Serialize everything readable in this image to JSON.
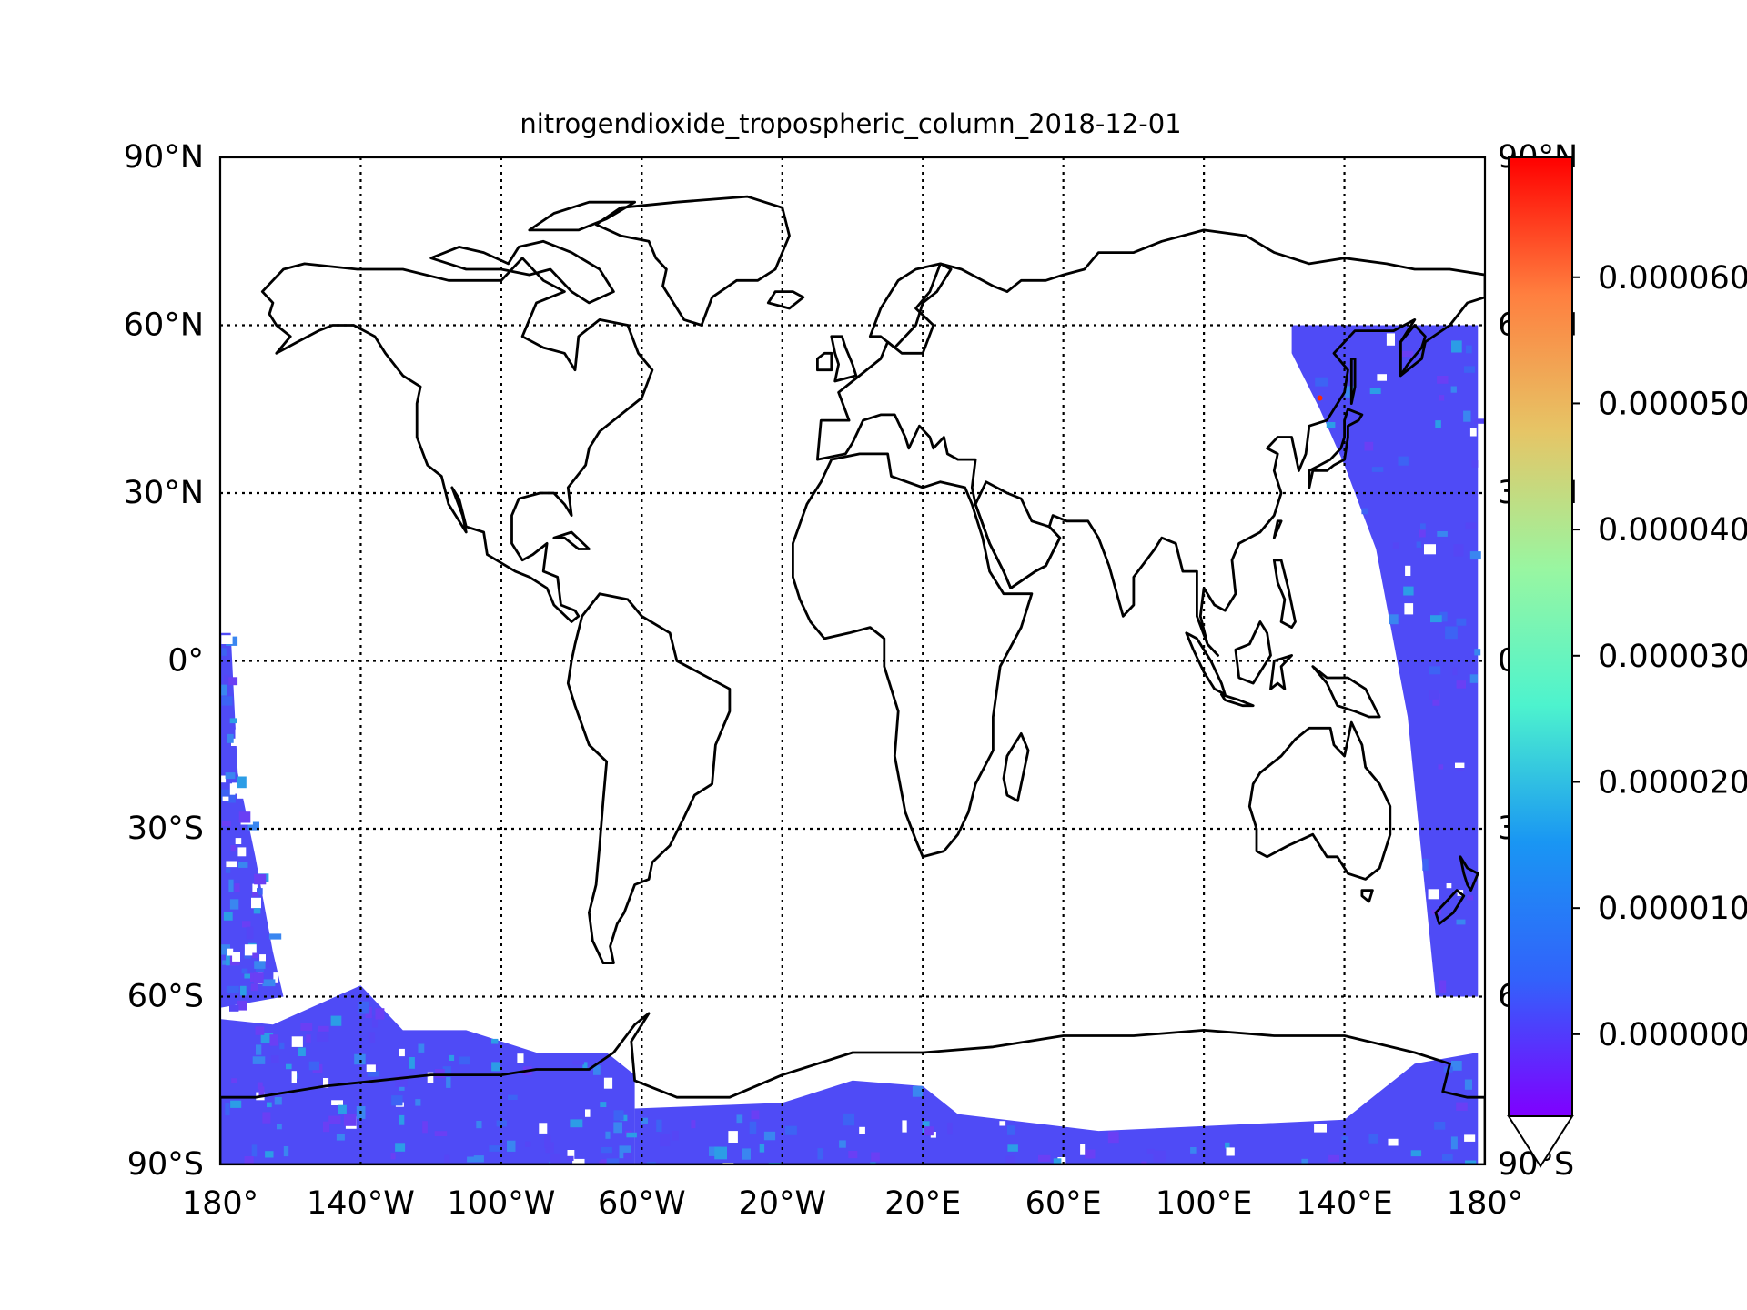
{
  "figure": {
    "title": "nitrogendioxide_tropospheric_column_2018-12-01"
  },
  "map": {
    "projection": "cylindrical",
    "lon_range": [
      -180,
      180
    ],
    "lat_range": [
      -90,
      90
    ],
    "lat_ticks": [
      {
        "lat": 90,
        "label": "90°N"
      },
      {
        "lat": 60,
        "label": "60°N"
      },
      {
        "lat": 30,
        "label": "30°N"
      },
      {
        "lat": 0,
        "label": "0°"
      },
      {
        "lat": -30,
        "label": "30°S"
      },
      {
        "lat": -60,
        "label": "60°S"
      },
      {
        "lat": -90,
        "label": "90°S"
      }
    ],
    "right_lat_labels": [
      {
        "lat": 90,
        "label": "90°N"
      },
      {
        "lat": 60,
        "label": "60°N"
      },
      {
        "lat": 30,
        "label": "30°N"
      },
      {
        "lat": 0,
        "label": "0°"
      },
      {
        "lat": -30,
        "label": "30°S"
      },
      {
        "lat": -60,
        "label": "60°S"
      },
      {
        "lat": -90,
        "label": "90°S"
      }
    ],
    "lon_ticks": [
      {
        "lon": -180,
        "label": "180°"
      },
      {
        "lon": -140,
        "label": "140°W"
      },
      {
        "lon": -100,
        "label": "100°W"
      },
      {
        "lon": -60,
        "label": "60°W"
      },
      {
        "lon": -20,
        "label": "20°W"
      },
      {
        "lon": 20,
        "label": "20°E"
      },
      {
        "lon": 60,
        "label": "60°E"
      },
      {
        "lon": 100,
        "label": "100°E"
      },
      {
        "lon": 140,
        "label": "140°E"
      },
      {
        "lon": 180,
        "label": "180°"
      }
    ],
    "gridlines": true,
    "coastlines": true,
    "data_regions": [
      {
        "name": "western-pacific",
        "polygon": [
          [
            125,
            60
          ],
          [
            178,
            60
          ],
          [
            178,
            -60
          ],
          [
            166,
            -60
          ],
          [
            158,
            -10
          ],
          [
            149,
            20
          ],
          [
            140,
            35
          ],
          [
            133,
            45
          ],
          [
            125,
            55
          ]
        ]
      },
      {
        "name": "eastern-pacific-southwest",
        "polygon": [
          [
            -180,
            5
          ],
          [
            -177,
            5
          ],
          [
            -175,
            -20
          ],
          [
            -170,
            -35
          ],
          [
            -165,
            -52
          ],
          [
            -162,
            -60
          ],
          [
            -180,
            -62
          ]
        ]
      },
      {
        "name": "antarctic-band-west",
        "polygon": [
          [
            -180,
            -64
          ],
          [
            -165,
            -65
          ],
          [
            -140,
            -58
          ],
          [
            -128,
            -66
          ],
          [
            -110,
            -66
          ],
          [
            -90,
            -70
          ],
          [
            -70,
            -70
          ],
          [
            -62,
            -74
          ],
          [
            -62,
            -90
          ],
          [
            -180,
            -90
          ]
        ]
      },
      {
        "name": "antarctic-band-south",
        "polygon": [
          [
            -62,
            -80
          ],
          [
            -20,
            -79
          ],
          [
            0,
            -75
          ],
          [
            20,
            -76
          ],
          [
            30,
            -81
          ],
          [
            70,
            -84
          ],
          [
            140,
            -82
          ],
          [
            160,
            -72
          ],
          [
            178,
            -70
          ],
          [
            178,
            -90
          ],
          [
            -62,
            -90
          ]
        ]
      }
    ],
    "hotspot": {
      "lon": 133,
      "lat": 47
    }
  },
  "colorbar": {
    "colormap": "rainbow",
    "colors": [
      "#7f00ff",
      "#3262fb",
      "#1996f3",
      "#4df3ce",
      "#99f6a1",
      "#e6c566",
      "#ff7f3f",
      "#ff0000"
    ],
    "range": [
      -6.5e-06,
      6.95e-05
    ],
    "extend": "min",
    "ticks": [
      {
        "value": 0.0,
        "label": "0.000000"
      },
      {
        "value": 1e-05,
        "label": "0.000010"
      },
      {
        "value": 2e-05,
        "label": "0.000020"
      },
      {
        "value": 3e-05,
        "label": "0.000030"
      },
      {
        "value": 4e-05,
        "label": "0.000040"
      },
      {
        "value": 5e-05,
        "label": "0.000050"
      },
      {
        "value": 6e-05,
        "label": "0.000060"
      }
    ]
  }
}
